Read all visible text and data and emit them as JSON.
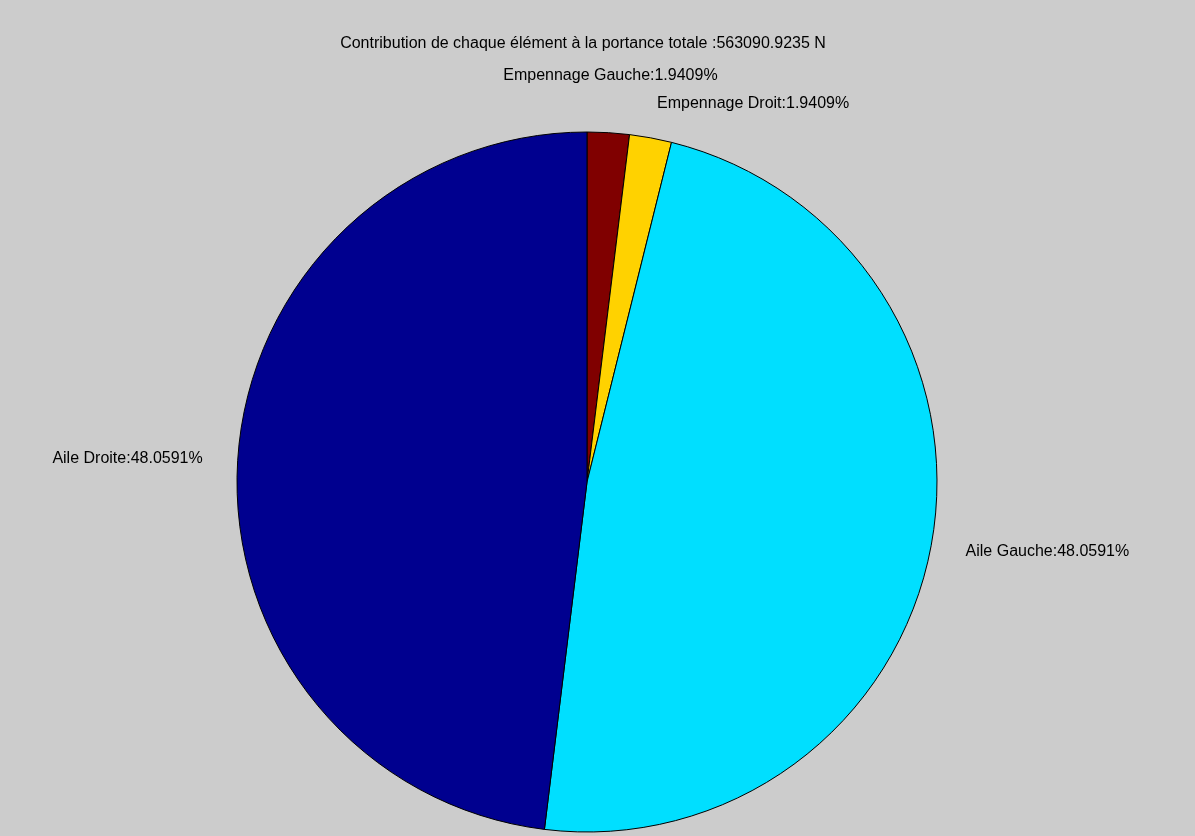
{
  "chart_data": {
    "type": "pie",
    "title": "Contribution de chaque élément à la portance totale :563090.9235 N",
    "categories": [
      "Empennage Gauche",
      "Empennage Droit",
      "Aile Gauche",
      "Aile Droite"
    ],
    "values": [
      1.9409,
      1.9409,
      48.0591,
      48.0591
    ],
    "value_labels": [
      "1.9409%",
      "1.9409%",
      "48.0591%",
      "48.0591%"
    ],
    "colors": [
      "#800000",
      "#ffd200",
      "#00dfff",
      "#00008f"
    ]
  }
}
